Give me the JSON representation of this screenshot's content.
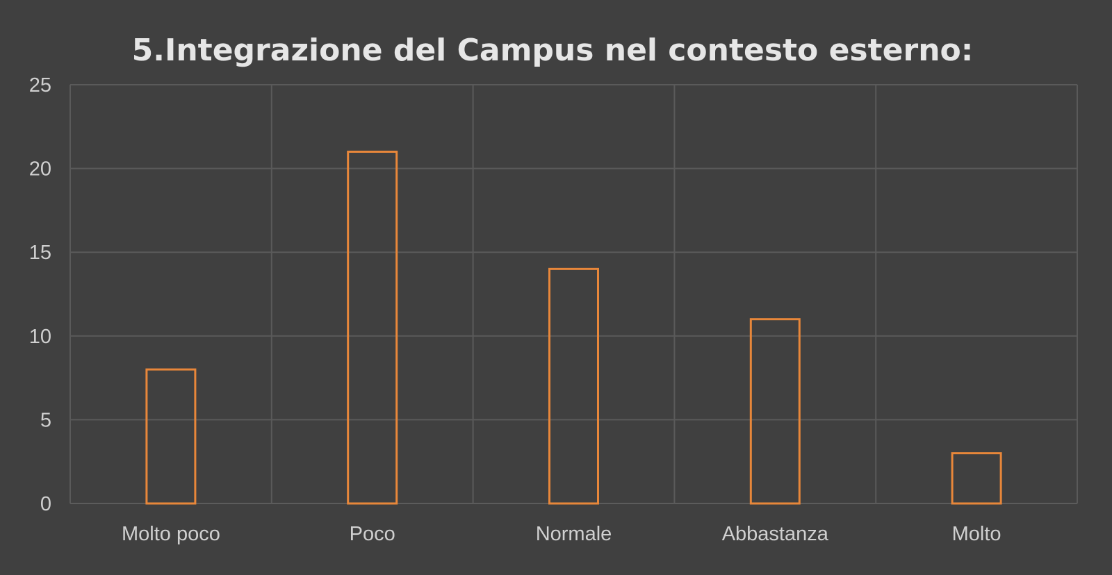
{
  "chart_data": {
    "type": "bar",
    "title": "5.Integrazione del Campus nel contesto esterno:",
    "categories": [
      "Molto poco",
      "Poco",
      "Normale",
      "Abbastanza",
      "Molto"
    ],
    "values": [
      8,
      21,
      14,
      11,
      3
    ],
    "xlabel": "",
    "ylabel": "",
    "ylim": [
      0,
      25
    ],
    "yticks": [
      0,
      5,
      10,
      15,
      20,
      25
    ],
    "grid": true,
    "legend": "none",
    "colors": {
      "background": "#404040",
      "bar_outline": "#e8873a",
      "bar_fill": "none",
      "grid": "#5a5a5a",
      "text": "#d0d0d0",
      "title": "#e6e6e6"
    }
  }
}
